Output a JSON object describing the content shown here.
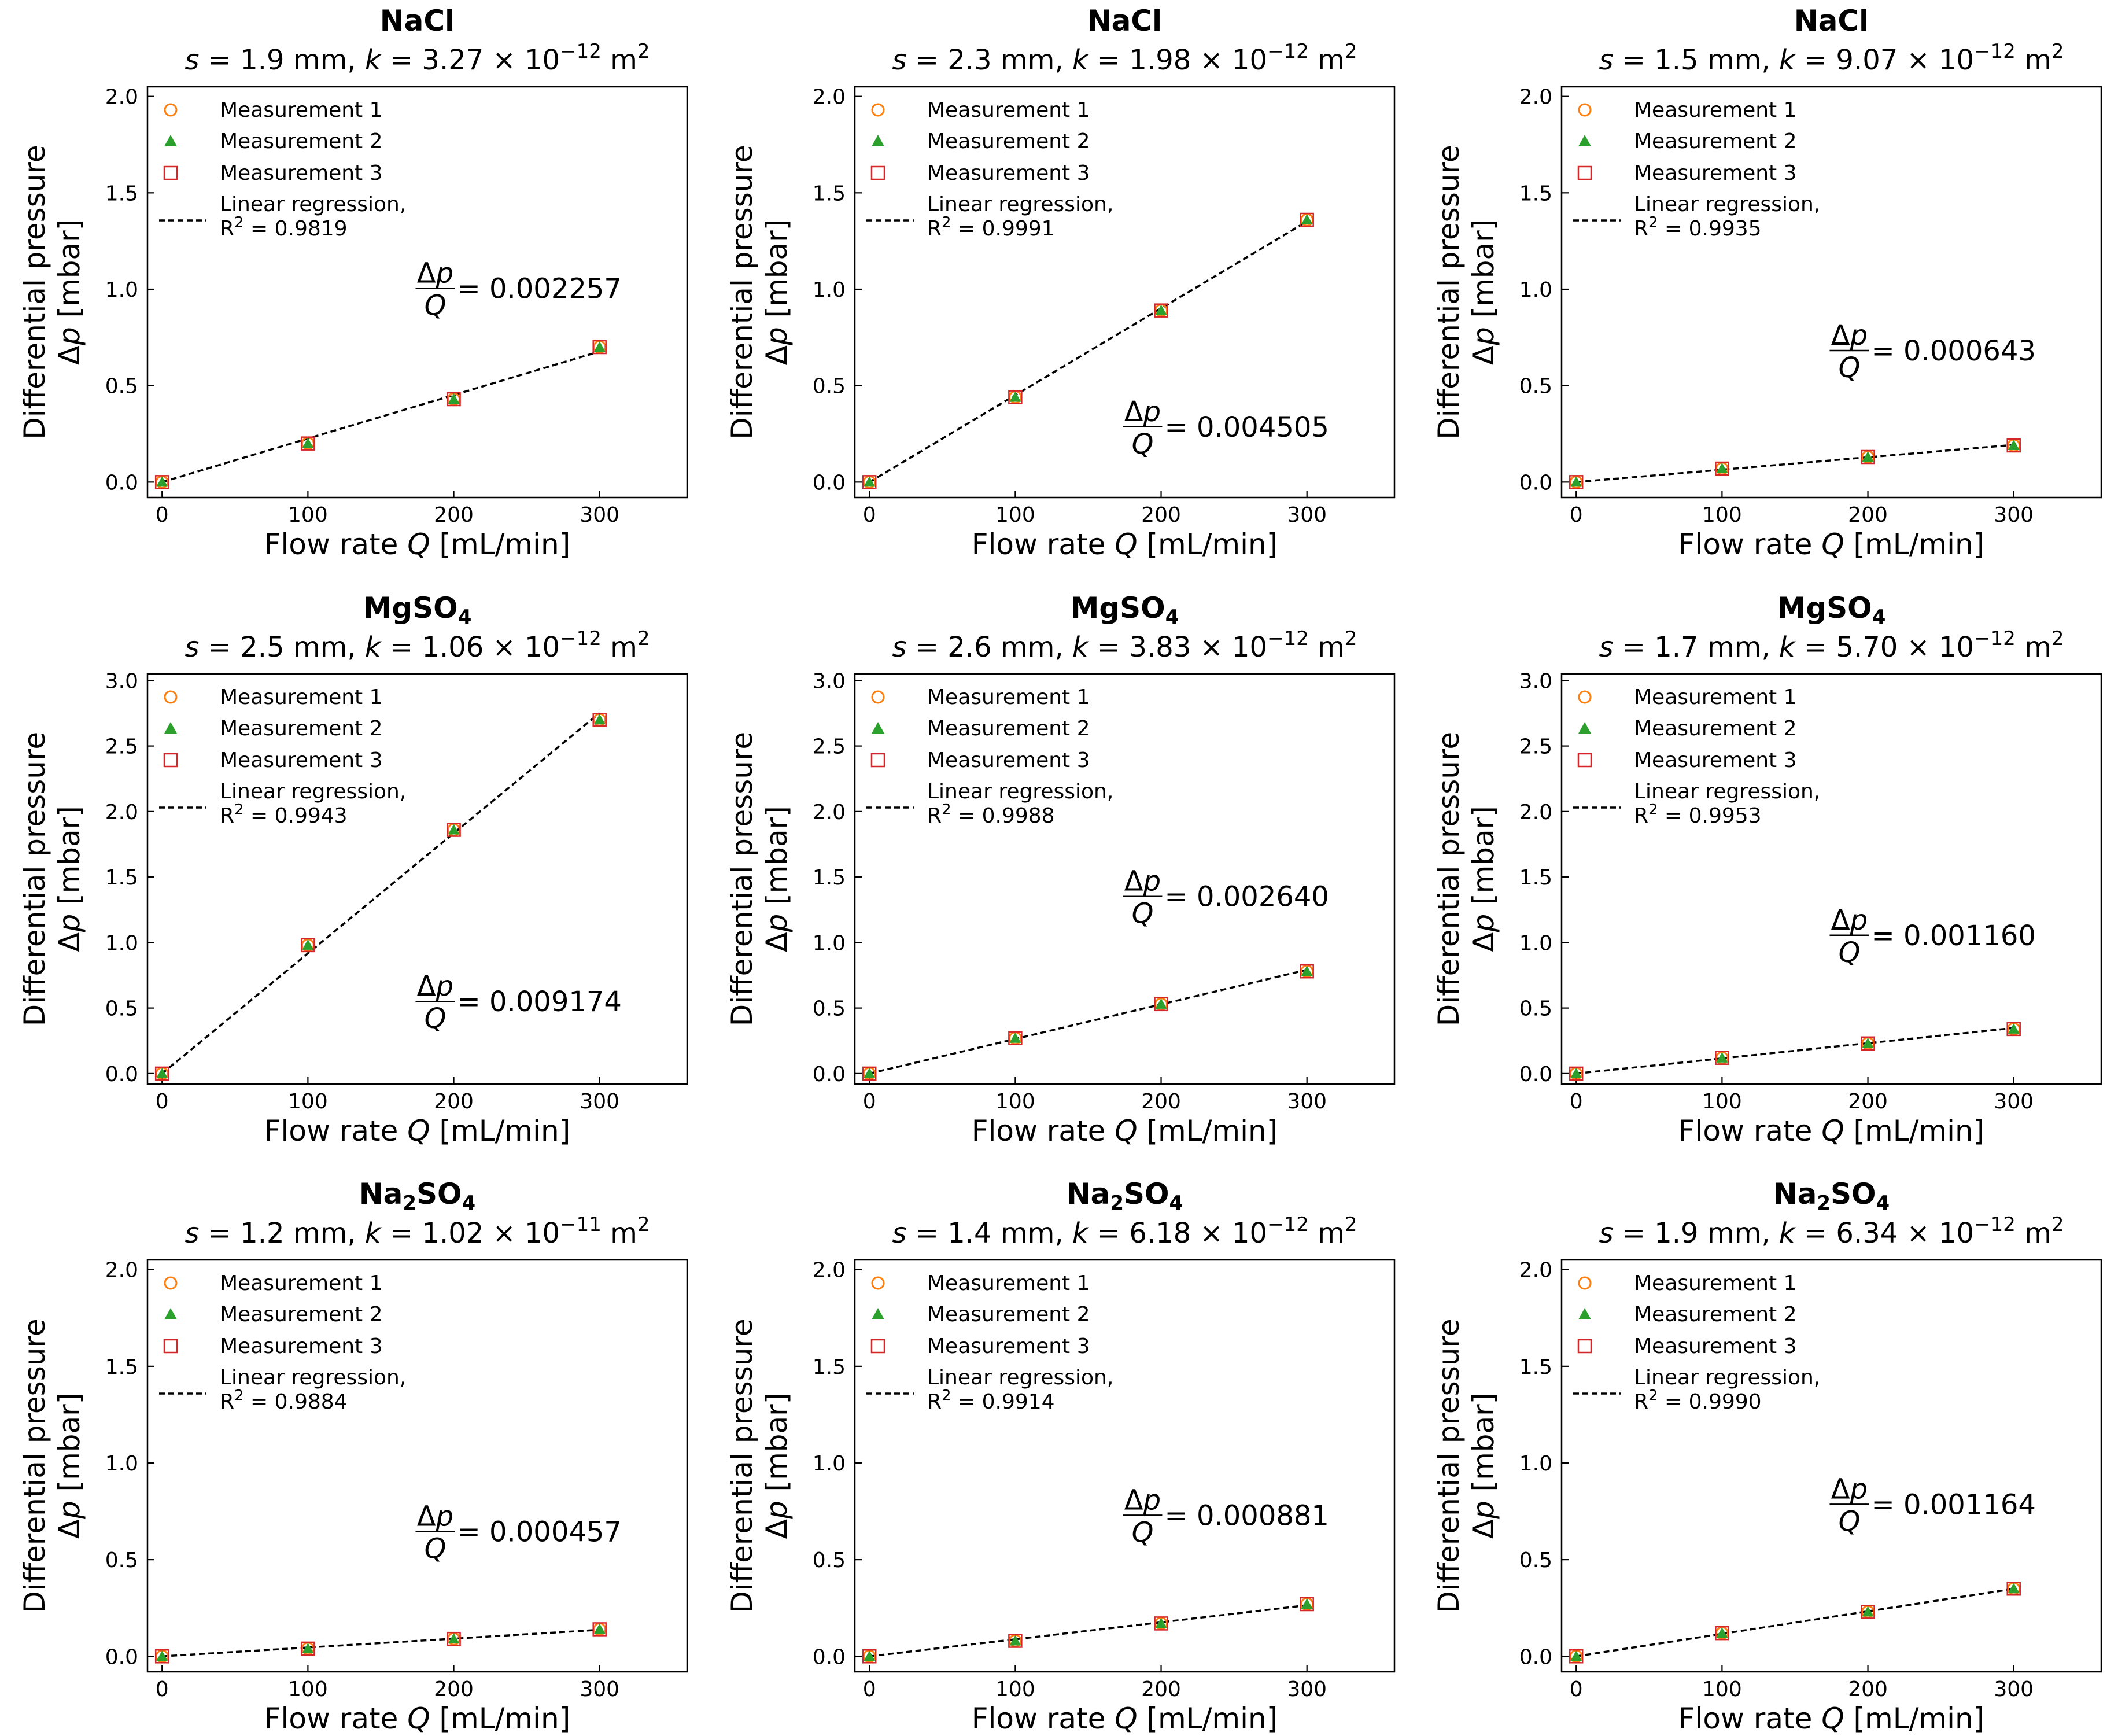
{
  "figure": {
    "legend_entries": [
      "Measurement 1",
      "Measurement 2",
      "Measurement 3",
      "Linear regression,"
    ],
    "r2_prefix": "R",
    "r2_sup": "2",
    "x_axis_label": {
      "pre": "Flow rate ",
      "var": "Q",
      "post": " [mL/min]"
    },
    "y_axis_label": {
      "line1": "Differential pressure",
      "sym": "Δ",
      "var": "p",
      "post": " [mbar]"
    },
    "slope_label": {
      "num_sym": "Δ",
      "num_var": "p",
      "den_var": "Q",
      "eq": " = "
    },
    "colors": {
      "measurement_1": "#ff7f0e",
      "measurement_2": "#2ca02c",
      "measurement_3": "#d62728",
      "regression": "#000000"
    }
  },
  "chart_data": [
    {
      "type": "scatter",
      "title": "NaCl",
      "title_sub": "",
      "s_text": "1.9",
      "k_mant": "3.27",
      "k_exp": "−12",
      "r2": "0.9819",
      "slope_text": "0.002257",
      "x": [
        0,
        100,
        200,
        300
      ],
      "y": [
        0.0,
        0.2,
        0.43,
        0.7
      ],
      "slope": 0.002257,
      "xlim": [
        -10,
        360
      ],
      "ylim": [
        -0.08,
        2.05
      ],
      "yticks": [
        "0.0",
        "0.5",
        "1.0",
        "1.5",
        "2.0"
      ],
      "xticks": [
        "0",
        "100",
        "200",
        "300"
      ],
      "legend": "upper-left"
    },
    {
      "type": "scatter",
      "title": "NaCl",
      "title_sub": "",
      "s_text": "2.3",
      "k_mant": "1.98",
      "k_exp": "−12",
      "r2": "0.9991",
      "slope_text": "0.004505",
      "x": [
        0,
        100,
        200,
        300
      ],
      "y": [
        0.0,
        0.44,
        0.89,
        1.36
      ],
      "slope": 0.004505,
      "xlim": [
        -10,
        360
      ],
      "ylim": [
        -0.08,
        2.05
      ],
      "yticks": [
        "0.0",
        "0.5",
        "1.0",
        "1.5",
        "2.0"
      ],
      "xticks": [
        "0",
        "100",
        "200",
        "300"
      ],
      "legend": "upper-left"
    },
    {
      "type": "scatter",
      "title": "NaCl",
      "title_sub": "",
      "s_text": "1.5",
      "k_mant": "9.07",
      "k_exp": "−12",
      "r2": "0.9935",
      "slope_text": "0.000643",
      "x": [
        0,
        100,
        200,
        300
      ],
      "y": [
        0.0,
        0.07,
        0.13,
        0.19
      ],
      "slope": 0.000643,
      "xlim": [
        -10,
        360
      ],
      "ylim": [
        -0.08,
        2.05
      ],
      "yticks": [
        "0.0",
        "0.5",
        "1.0",
        "1.5",
        "2.0"
      ],
      "xticks": [
        "0",
        "100",
        "200",
        "300"
      ],
      "legend": "upper-left"
    },
    {
      "type": "scatter",
      "title": "MgSO",
      "title_sub": "4",
      "s_text": "2.5",
      "k_mant": "1.06",
      "k_exp": "−12",
      "r2": "0.9943",
      "slope_text": "0.009174",
      "x": [
        0,
        100,
        200,
        300
      ],
      "y": [
        0.0,
        0.98,
        1.86,
        2.7
      ],
      "slope": 0.009174,
      "xlim": [
        -10,
        360
      ],
      "ylim": [
        -0.08,
        3.05
      ],
      "yticks": [
        "0.0",
        "0.5",
        "1.0",
        "1.5",
        "2.0",
        "2.5",
        "3.0"
      ],
      "xticks": [
        "0",
        "100",
        "200",
        "300"
      ],
      "legend": "upper-left"
    },
    {
      "type": "scatter",
      "title": "MgSO",
      "title_sub": "4",
      "s_text": "2.6",
      "k_mant": "3.83",
      "k_exp": "−12",
      "r2": "0.9988",
      "slope_text": "0.002640",
      "x": [
        0,
        100,
        200,
        300
      ],
      "y": [
        0.0,
        0.27,
        0.53,
        0.78
      ],
      "slope": 0.00264,
      "xlim": [
        -10,
        360
      ],
      "ylim": [
        -0.08,
        3.05
      ],
      "yticks": [
        "0.0",
        "0.5",
        "1.0",
        "1.5",
        "2.0",
        "2.5",
        "3.0"
      ],
      "xticks": [
        "0",
        "100",
        "200",
        "300"
      ],
      "legend": "upper-left"
    },
    {
      "type": "scatter",
      "title": "MgSO",
      "title_sub": "4",
      "s_text": "1.7",
      "k_mant": "5.70",
      "k_exp": "−12",
      "r2": "0.9953",
      "slope_text": "0.001160",
      "x": [
        0,
        100,
        200,
        300
      ],
      "y": [
        0.0,
        0.12,
        0.23,
        0.34
      ],
      "slope": 0.00116,
      "xlim": [
        -10,
        360
      ],
      "ylim": [
        -0.08,
        3.05
      ],
      "yticks": [
        "0.0",
        "0.5",
        "1.0",
        "1.5",
        "2.0",
        "2.5",
        "3.0"
      ],
      "xticks": [
        "0",
        "100",
        "200",
        "300"
      ],
      "legend": "upper-left"
    },
    {
      "type": "scatter",
      "title": "Na",
      "title_sub": "2",
      "title_post": "SO",
      "title_sub2": "4",
      "s_text": "1.2",
      "k_mant": "1.02",
      "k_exp": "−11",
      "r2": "0.9884",
      "slope_text": "0.000457",
      "x": [
        0,
        100,
        200,
        300
      ],
      "y": [
        0.0,
        0.04,
        0.09,
        0.14
      ],
      "slope": 0.000457,
      "xlim": [
        -10,
        360
      ],
      "ylim": [
        -0.08,
        2.05
      ],
      "yticks": [
        "0.0",
        "0.5",
        "1.0",
        "1.5",
        "2.0"
      ],
      "xticks": [
        "0",
        "100",
        "200",
        "300"
      ],
      "legend": "upper-left"
    },
    {
      "type": "scatter",
      "title": "Na",
      "title_sub": "2",
      "title_post": "SO",
      "title_sub2": "4",
      "s_text": "1.4",
      "k_mant": "6.18",
      "k_exp": "−12",
      "r2": "0.9914",
      "slope_text": "0.000881",
      "x": [
        0,
        100,
        200,
        300
      ],
      "y": [
        0.0,
        0.08,
        0.17,
        0.27
      ],
      "slope": 0.000881,
      "xlim": [
        -10,
        360
      ],
      "ylim": [
        -0.08,
        2.05
      ],
      "yticks": [
        "0.0",
        "0.5",
        "1.0",
        "1.5",
        "2.0"
      ],
      "xticks": [
        "0",
        "100",
        "200",
        "300"
      ],
      "legend": "upper-left"
    },
    {
      "type": "scatter",
      "title": "Na",
      "title_sub": "2",
      "title_post": "SO",
      "title_sub2": "4",
      "s_text": "1.9",
      "k_mant": "6.34",
      "k_exp": "−12",
      "r2": "0.9990",
      "slope_text": "0.001164",
      "x": [
        0,
        100,
        200,
        300
      ],
      "y": [
        0.0,
        0.12,
        0.23,
        0.35
      ],
      "slope": 0.001164,
      "xlim": [
        -10,
        360
      ],
      "ylim": [
        -0.08,
        2.05
      ],
      "yticks": [
        "0.0",
        "0.5",
        "1.0",
        "1.5",
        "2.0"
      ],
      "xticks": [
        "0",
        "100",
        "200",
        "300"
      ],
      "legend": "upper-left"
    }
  ]
}
